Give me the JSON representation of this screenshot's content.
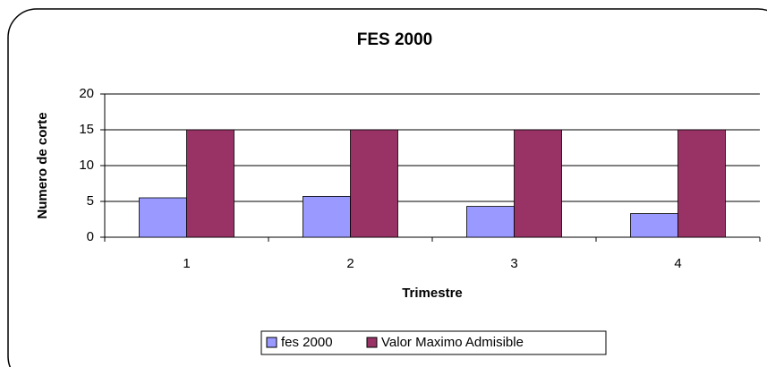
{
  "chart_data": {
    "type": "bar",
    "title": "FES 2000",
    "x_label": "Trimestre",
    "y_label": "Numero de corte",
    "categories": [
      "1",
      "2",
      "3",
      "4"
    ],
    "series": [
      {
        "name": "fes 2000",
        "color": "#9999ff",
        "values": [
          5.5,
          5.7,
          4.3,
          3.3
        ]
      },
      {
        "name": "Valor Maximo Admisible",
        "color": "#993366",
        "values": [
          15,
          15,
          15,
          15
        ]
      }
    ],
    "ylim": [
      0,
      20
    ],
    "yticks": [
      0,
      5,
      10,
      15,
      20
    ],
    "grid": true,
    "legend": "bottom"
  }
}
